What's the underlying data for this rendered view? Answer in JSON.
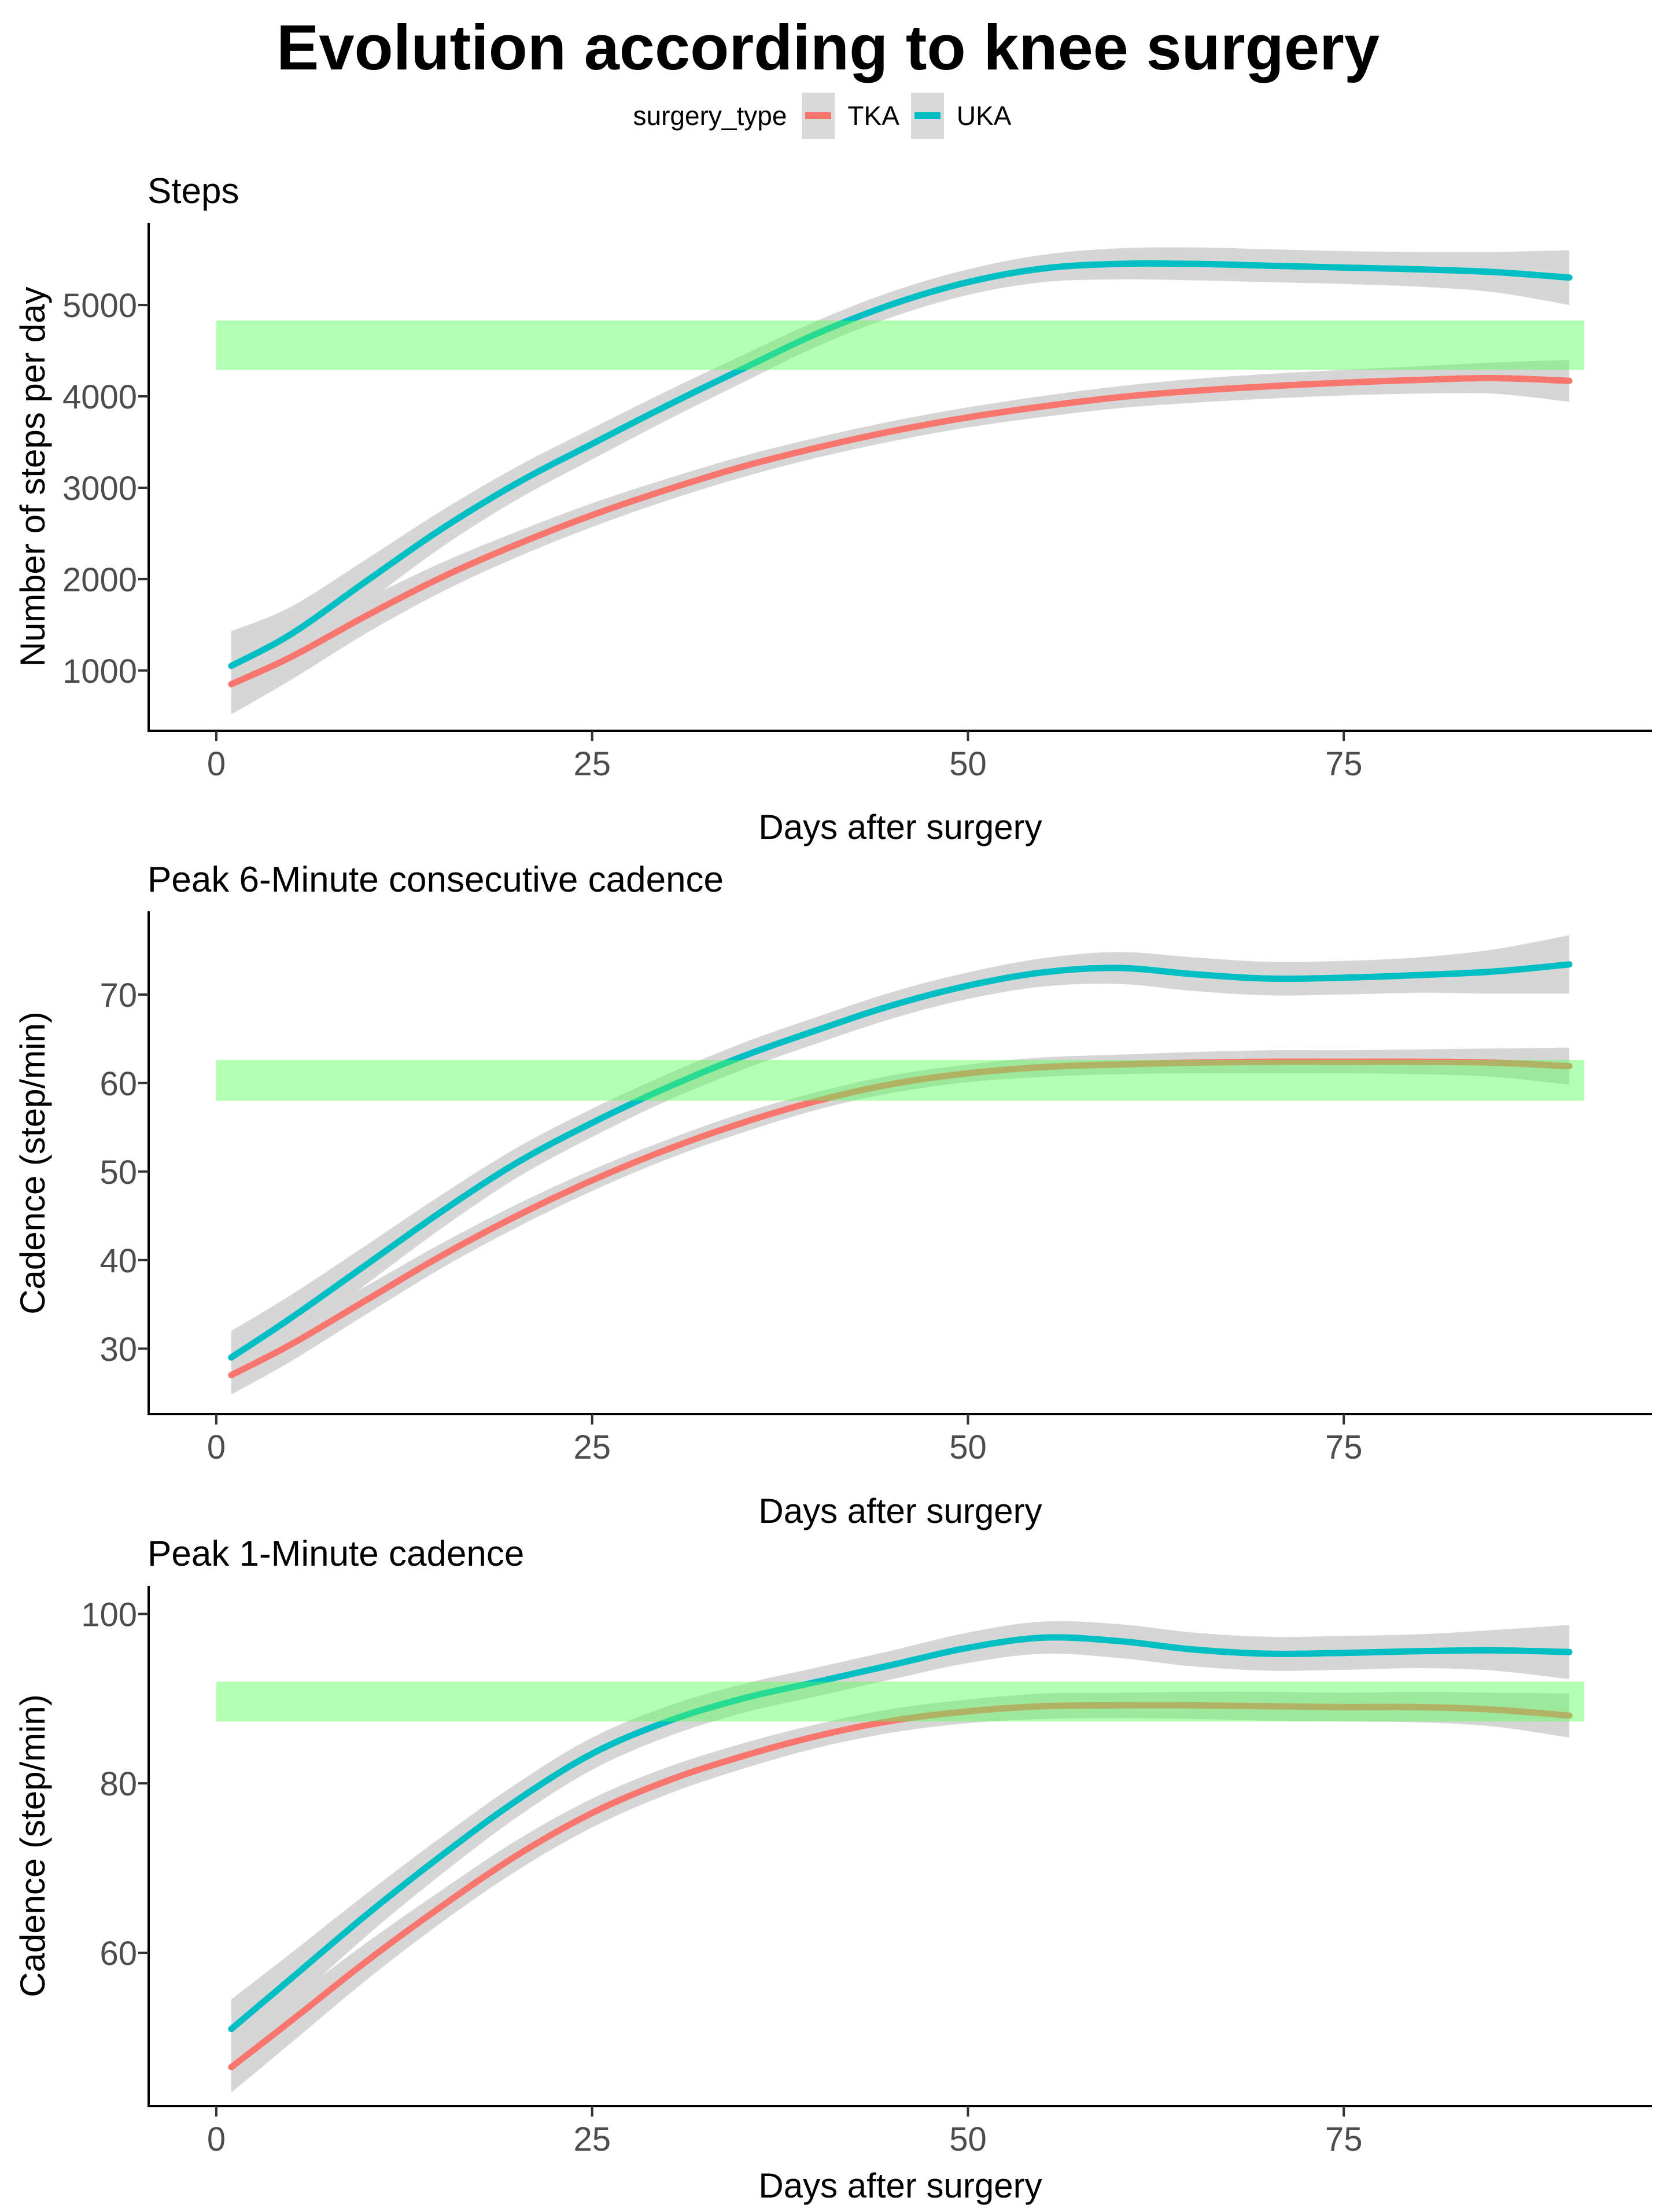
{
  "chart": {
    "title": "Evolution according to knee surgery",
    "legend": {
      "title": "surgery_type",
      "items": [
        {
          "label": "TKA",
          "color": "#F8766D"
        },
        {
          "label": "UKA",
          "color": "#00BFC4"
        }
      ]
    },
    "colors": {
      "tka": "#F8766D",
      "uka": "#00BFC4",
      "ribbon": "#D6D6D6",
      "target_band": "rgba(86,255,86,0.45)",
      "axis_line": "#000000",
      "tick_mark": "#333333",
      "tick_label": "#4d4d4d"
    }
  },
  "chart_data": [
    {
      "type": "line",
      "title": "Steps",
      "xlabel": "Days after surgery",
      "ylabel": "Number of steps per day",
      "x": [
        1,
        5,
        10,
        15,
        20,
        25,
        30,
        35,
        40,
        45,
        50,
        55,
        60,
        65,
        70,
        75,
        80,
        85,
        90
      ],
      "xticks": [
        0,
        25,
        50,
        75
      ],
      "yticks": [
        1000,
        2000,
        3000,
        4000,
        5000
      ],
      "xlim": [
        -4.5,
        95.5
      ],
      "ylim": [
        340,
        5900
      ],
      "grid": false,
      "target_band": {
        "ymin": 4290,
        "ymax": 4830,
        "xmin": 0,
        "xmax": 91
      },
      "series": [
        {
          "name": "TKA",
          "values": [
            850,
            1150,
            1600,
            2020,
            2380,
            2700,
            2980,
            3230,
            3440,
            3620,
            3770,
            3890,
            3990,
            4060,
            4110,
            4150,
            4180,
            4200,
            4170
          ],
          "ci_halfwidth": [
            330,
            250,
            190,
            160,
            140,
            130,
            120,
            115,
            110,
            110,
            110,
            115,
            120,
            130,
            135,
            140,
            150,
            170,
            230
          ]
        },
        {
          "name": "UKA",
          "values": [
            1050,
            1400,
            1980,
            2550,
            3050,
            3480,
            3900,
            4300,
            4690,
            5010,
            5250,
            5400,
            5450,
            5450,
            5430,
            5410,
            5390,
            5360,
            5300
          ],
          "ci_halfwidth": [
            380,
            300,
            240,
            200,
            180,
            170,
            160,
            150,
            140,
            140,
            140,
            150,
            170,
            180,
            180,
            180,
            190,
            220,
            300
          ]
        }
      ]
    },
    {
      "type": "line",
      "title": "Peak 6-Minute consecutive cadence",
      "xlabel": "Days after surgery",
      "ylabel": "Cadence (step/min)",
      "x": [
        1,
        5,
        10,
        15,
        20,
        25,
        30,
        35,
        40,
        45,
        50,
        55,
        60,
        65,
        70,
        75,
        80,
        85,
        90
      ],
      "xticks": [
        0,
        25,
        50,
        75
      ],
      "yticks": [
        30,
        40,
        50,
        60,
        70
      ],
      "xlim": [
        -4.5,
        95.5
      ],
      "ylim": [
        22.6,
        79.4
      ],
      "grid": false,
      "target_band": {
        "ymin": 58,
        "ymax": 62.6,
        "xmin": 0,
        "xmax": 91
      },
      "series": [
        {
          "name": "TKA",
          "values": [
            27,
            30.5,
            35.5,
            40.5,
            45,
            49,
            52.5,
            55.5,
            58,
            59.9,
            61.1,
            61.8,
            62.1,
            62.3,
            62.4,
            62.4,
            62.4,
            62.3,
            61.9
          ],
          "ci_halfwidth": [
            2.2,
            1.9,
            1.6,
            1.4,
            1.3,
            1.2,
            1.1,
            1.1,
            1.0,
            1.0,
            1.0,
            1.1,
            1.1,
            1.2,
            1.3,
            1.3,
            1.4,
            1.6,
            2.1
          ]
        },
        {
          "name": "UKA",
          "values": [
            29,
            33.5,
            39.5,
            45.5,
            51,
            55.5,
            59.5,
            63,
            66,
            68.8,
            71,
            72.5,
            73,
            72.3,
            71.8,
            71.9,
            72.2,
            72.6,
            73.4
          ],
          "ci_halfwidth": [
            3.0,
            2.6,
            2.2,
            1.9,
            1.7,
            1.6,
            1.5,
            1.5,
            1.5,
            1.5,
            1.5,
            1.6,
            1.8,
            1.9,
            1.9,
            1.9,
            2.0,
            2.5,
            3.3
          ]
        }
      ]
    },
    {
      "type": "line",
      "title": "Peak 1-Minute cadence",
      "xlabel": "Days after surgery",
      "ylabel": "Cadence (step/min)",
      "x": [
        1,
        5,
        10,
        15,
        20,
        25,
        30,
        35,
        40,
        45,
        50,
        55,
        60,
        65,
        70,
        75,
        80,
        85,
        90
      ],
      "xticks": [
        0,
        25,
        50,
        75
      ],
      "yticks": [
        60,
        80,
        100
      ],
      "xlim": [
        -4.5,
        95.5
      ],
      "ylim": [
        41.9,
        103.3
      ],
      "grid": false,
      "target_band": {
        "ymin": 87.3,
        "ymax": 92,
        "xmin": 0,
        "xmax": 91
      },
      "series": [
        {
          "name": "TKA",
          "values": [
            46.5,
            52,
            59,
            65.5,
            71.5,
            76.5,
            80.3,
            83.2,
            85.6,
            87.4,
            88.5,
            89.1,
            89.2,
            89.2,
            89.1,
            89,
            89,
            88.7,
            88
          ],
          "ci_halfwidth": [
            3.0,
            2.6,
            2.2,
            1.9,
            1.8,
            1.7,
            1.6,
            1.5,
            1.4,
            1.4,
            1.4,
            1.5,
            1.5,
            1.6,
            1.7,
            1.7,
            1.8,
            2.0,
            2.6
          ]
        },
        {
          "name": "UKA",
          "values": [
            51,
            57,
            64.5,
            71.5,
            78,
            83.5,
            87.3,
            90,
            92,
            94,
            96,
            97.2,
            96.8,
            95.8,
            95.3,
            95.4,
            95.6,
            95.7,
            95.5
          ],
          "ci_halfwidth": [
            3.5,
            3.0,
            2.5,
            2.2,
            2.0,
            1.9,
            1.8,
            1.7,
            1.7,
            1.7,
            1.8,
            1.9,
            2.0,
            2.0,
            2.0,
            2.0,
            2.0,
            2.4,
            3.2
          ]
        }
      ]
    }
  ]
}
